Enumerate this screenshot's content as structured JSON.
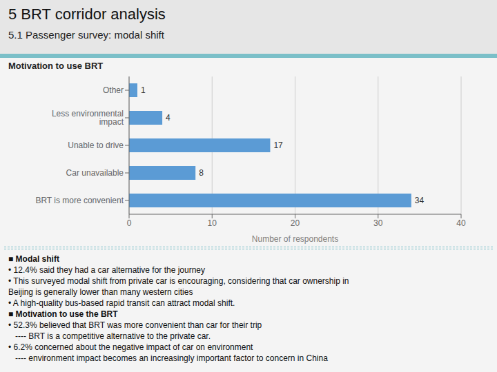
{
  "title": "5 BRT corridor analysis",
  "subtitle": "5.1 Passenger survey: modal shift",
  "annotations": [
    "■ Modal shift",
    "• 12.4% said they had a car alternative for the journey",
    "• This surveyed modal shift from private car is encouraging, considering that car ownership in",
    "Beijing is generally lower than many western cities",
    "• A high-quality bus-based rapid transit can attract modal shift.",
    "■ Motivation to use the BRT",
    "• 52.3% believed that BRT was more convenient than car for their trip",
    "   ---- BRT is a competitive alternative to the private car.",
    "• 6.2% concerned about the negative impact of car on environment",
    "   ---- environment impact becomes an increasingly important factor to concern in China"
  ],
  "chart_data": {
    "type": "bar",
    "orientation": "horizontal",
    "title": "Motivation to use BRT",
    "categories": [
      "BRT is more convenient",
      "Car unavailable",
      "Unable to drive",
      "Less environmental impact",
      "Other"
    ],
    "values": [
      34,
      8,
      17,
      4,
      1
    ],
    "color": "#5b9bd5",
    "xlabel": "Number of respondents",
    "xlim": [
      0,
      40
    ],
    "xticks": [
      0,
      10,
      20,
      30,
      40
    ],
    "grid": true,
    "data_labels": true
  }
}
